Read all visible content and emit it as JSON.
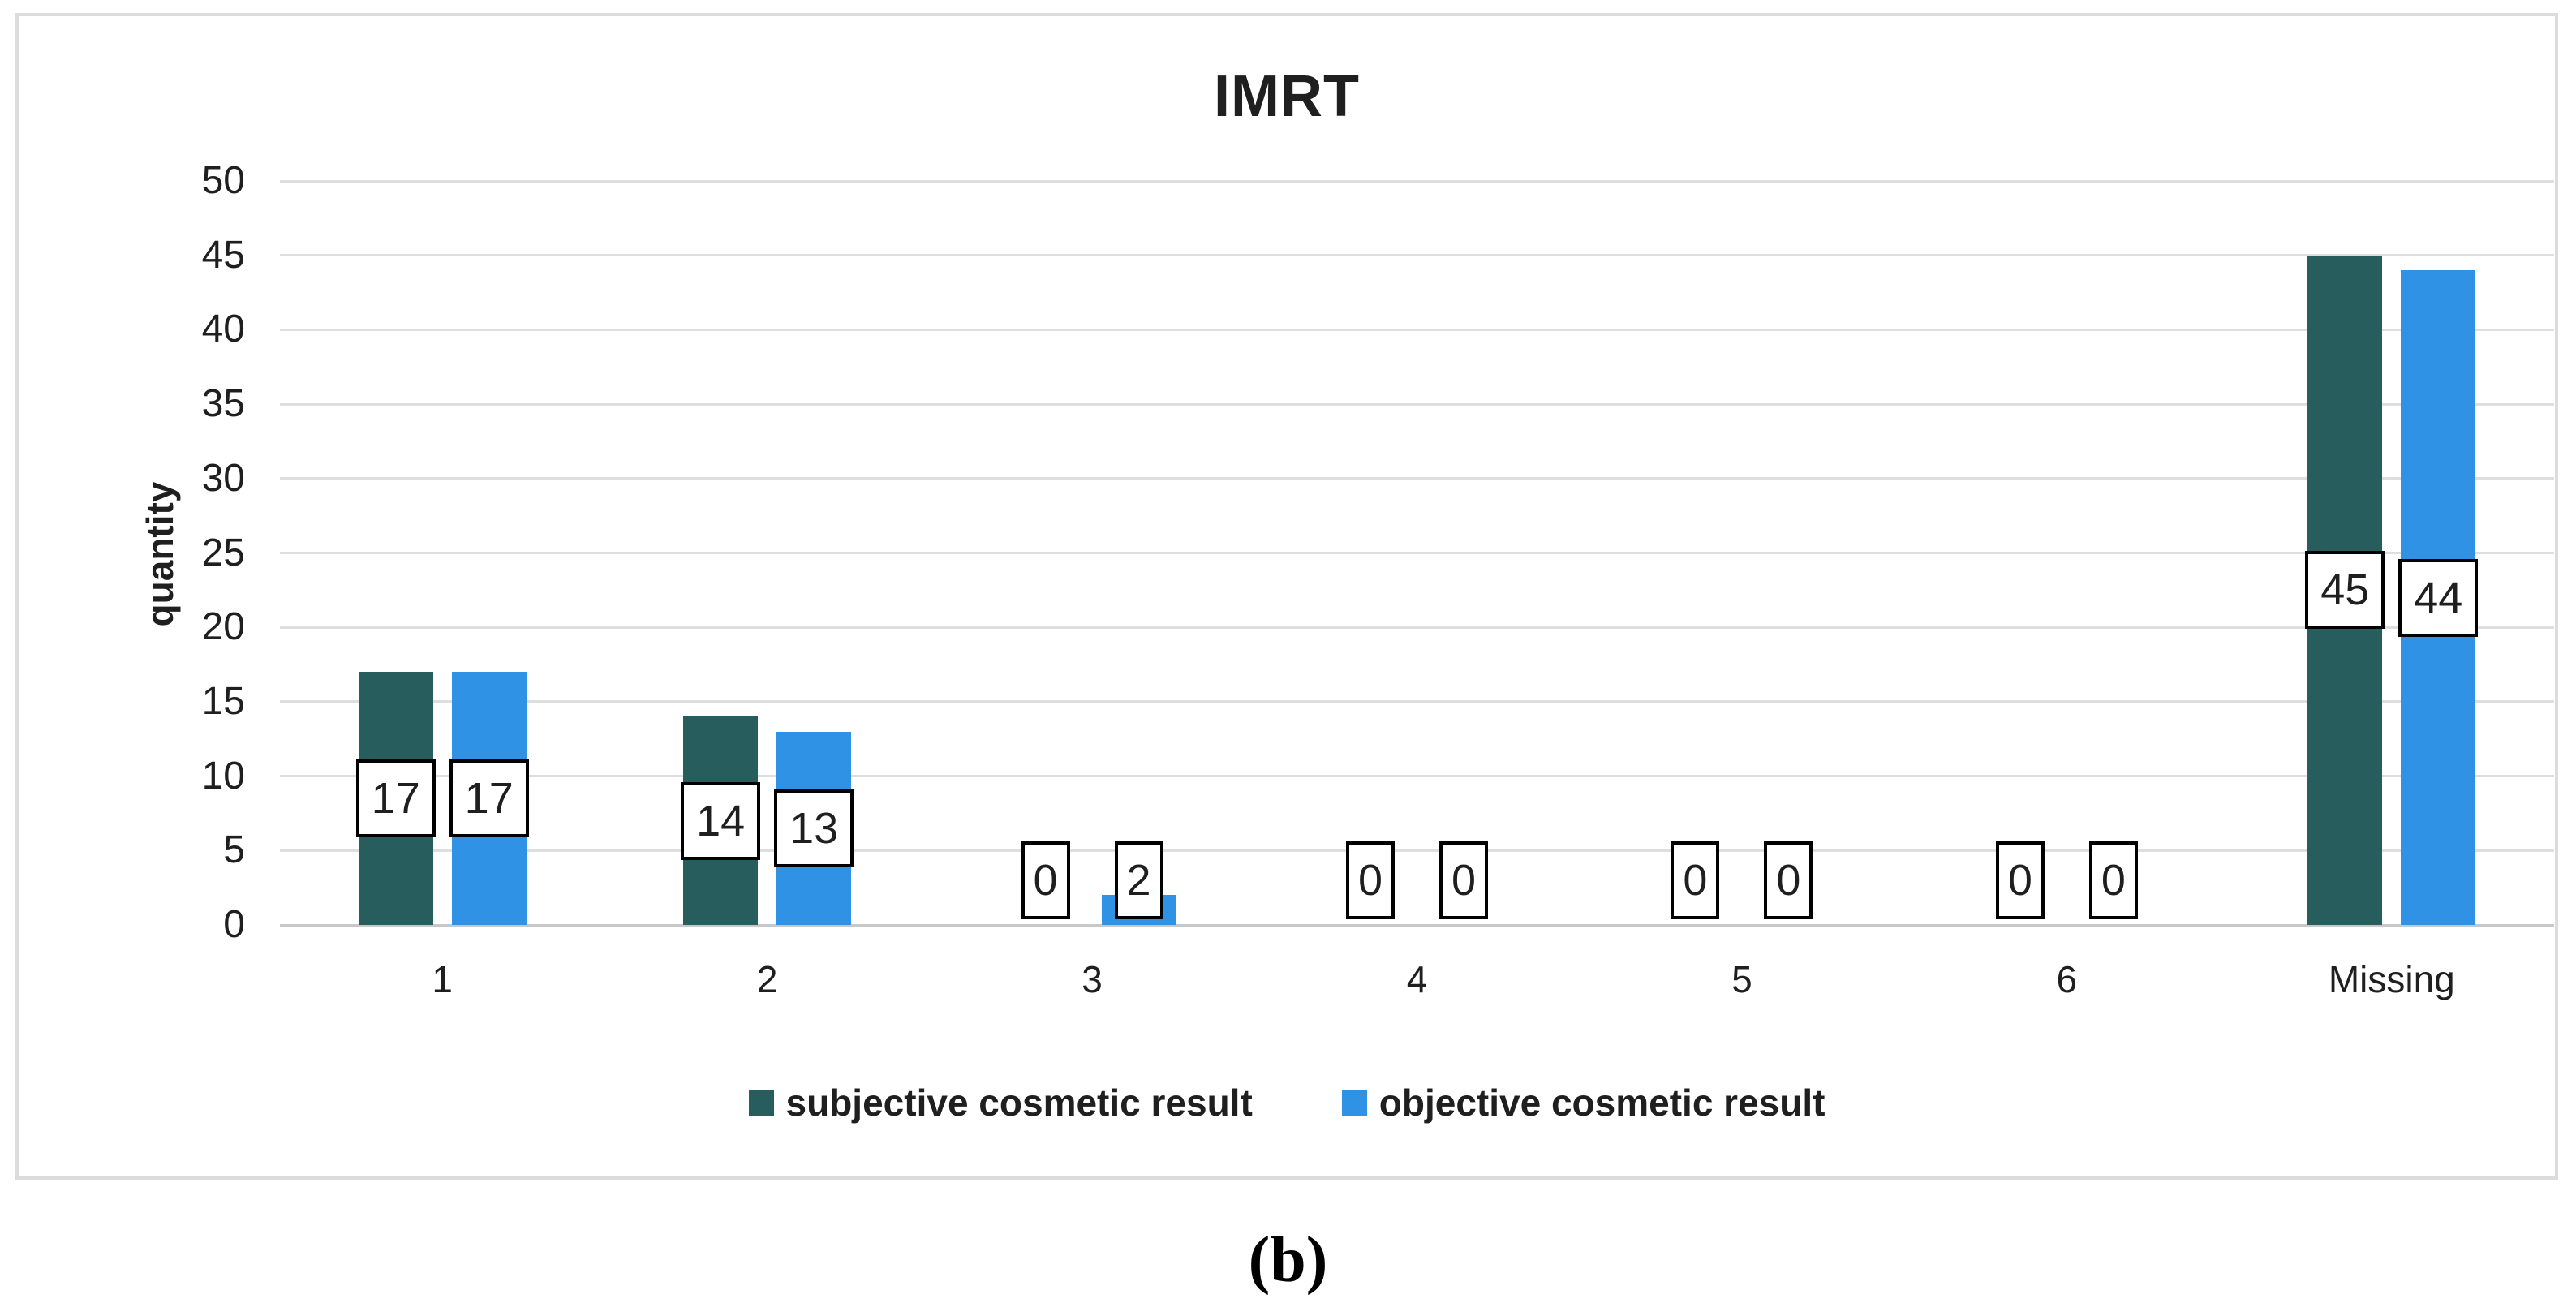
{
  "title": "IMRT",
  "caption": "(b)",
  "chart_data": {
    "type": "bar",
    "title": "IMRT",
    "categories": [
      "1",
      "2",
      "3",
      "4",
      "5",
      "6",
      "Missing"
    ],
    "series": [
      {
        "name": "subjective cosmetic result",
        "color": "#275d5c",
        "values": [
          17,
          14,
          0,
          0,
          0,
          0,
          45
        ]
      },
      {
        "name": "objective cosmetic result",
        "color": "#2f92e5",
        "values": [
          17,
          13,
          2,
          0,
          0,
          0,
          44
        ]
      }
    ],
    "xlabel": "",
    "ylabel": "quantity",
    "ylim": [
      0,
      50
    ],
    "yticks": [
      0,
      5,
      10,
      15,
      20,
      25,
      30,
      35,
      40,
      45,
      50
    ],
    "grid": true,
    "legend_position": "bottom",
    "data_labels": true
  },
  "colors": {
    "gridline": "#dedede",
    "axis_line": "#c8c8c8",
    "chart_border": "#dcdcdc",
    "text": "#1f1f1f",
    "data_label_border": "#000000",
    "data_label_bg": "#ffffff"
  }
}
